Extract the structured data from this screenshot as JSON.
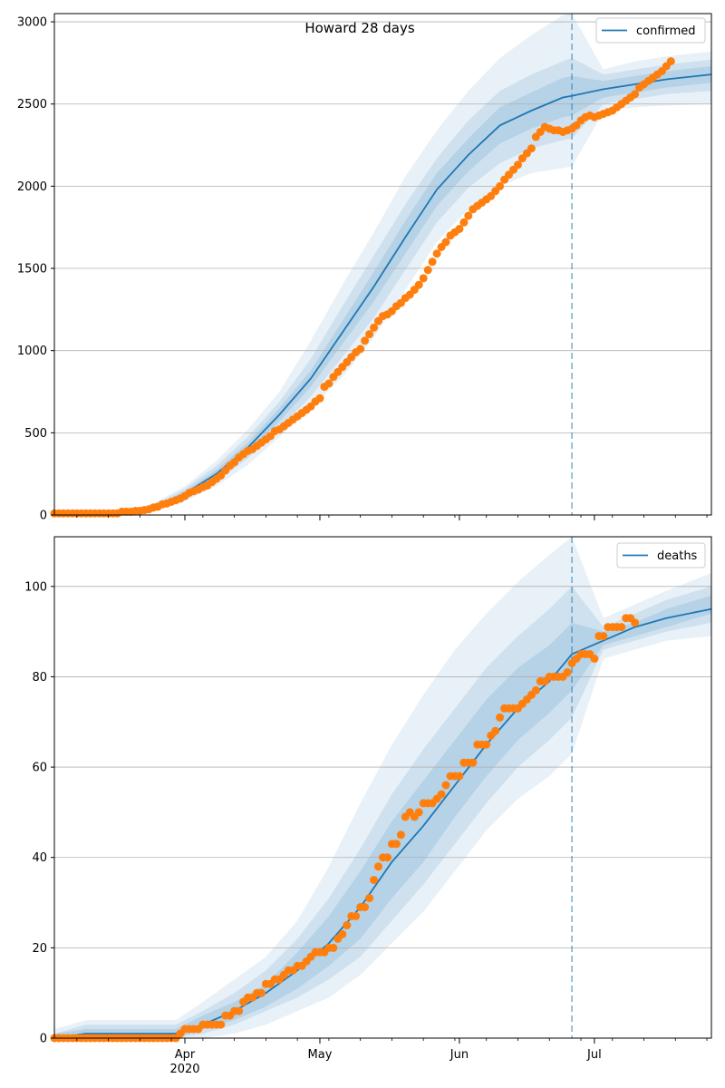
{
  "figure": {
    "title": "Howard 28 days"
  },
  "chart_data": [
    {
      "type": "line",
      "legend": "confirmed",
      "legend_placement": "top-right",
      "grid": "y",
      "xlim": [
        "2020-03-03",
        "2020-07-27"
      ],
      "ylim": [
        0,
        3050
      ],
      "yticks": [
        0,
        500,
        1000,
        1500,
        2000,
        2500,
        3000
      ],
      "vline_date": "2020-06-26",
      "colors": {
        "model": "#1f77b4",
        "observed": "#ff7f0e",
        "band": "#1f77b4"
      },
      "model": {
        "x": [
          "2020-03-03",
          "2020-03-18",
          "2020-03-25",
          "2020-04-01",
          "2020-04-08",
          "2020-04-15",
          "2020-04-22",
          "2020-04-29",
          "2020-05-06",
          "2020-05-13",
          "2020-05-20",
          "2020-05-27",
          "2020-06-03",
          "2020-06-10",
          "2020-06-17",
          "2020-06-24",
          "2020-06-26",
          "2020-07-03",
          "2020-07-10",
          "2020-07-17",
          "2020-07-27"
        ],
        "y": [
          0,
          10,
          45,
          130,
          250,
          410,
          610,
          830,
          1110,
          1390,
          1690,
          1980,
          2190,
          2370,
          2460,
          2540,
          2550,
          2590,
          2620,
          2650,
          2680
        ]
      },
      "bands": [
        {
          "level": "outer",
          "lower": [
            0,
            0,
            20,
            85,
            175,
            305,
            475,
            650,
            840,
            1080,
            1370,
            1660,
            1860,
            2000,
            2080,
            2110,
            2120,
            2450,
            2480,
            2490,
            2500
          ],
          "upper": [
            0,
            20,
            70,
            175,
            330,
            520,
            750,
            1060,
            1400,
            1720,
            2060,
            2340,
            2580,
            2780,
            2920,
            3040,
            3050,
            2710,
            2760,
            2790,
            2820
          ]
        },
        {
          "level": "middle",
          "lower": [
            0,
            3,
            30,
            100,
            200,
            345,
            530,
            720,
            960,
            1200,
            1490,
            1780,
            1990,
            2140,
            2230,
            2280,
            2290,
            2500,
            2530,
            2560,
            2580
          ],
          "upper": [
            0,
            16,
            60,
            160,
            300,
            475,
            690,
            950,
            1270,
            1580,
            1890,
            2170,
            2400,
            2580,
            2680,
            2760,
            2780,
            2680,
            2710,
            2740,
            2770
          ]
        },
        {
          "level": "inner",
          "lower": [
            0,
            6,
            38,
            115,
            225,
            380,
            570,
            780,
            1040,
            1300,
            1590,
            1880,
            2090,
            2260,
            2350,
            2420,
            2430,
            2540,
            2570,
            2600,
            2630
          ],
          "upper": [
            0,
            13,
            52,
            145,
            275,
            440,
            650,
            880,
            1180,
            1480,
            1790,
            2080,
            2290,
            2480,
            2570,
            2660,
            2670,
            2640,
            2670,
            2700,
            2730
          ]
        }
      ],
      "observed": {
        "start": "2020-03-03",
        "y": [
          10,
          10,
          10,
          10,
          10,
          10,
          10,
          10,
          10,
          10,
          10,
          10,
          10,
          10,
          10,
          20,
          20,
          20,
          25,
          25,
          30,
          35,
          45,
          50,
          65,
          70,
          80,
          90,
          100,
          115,
          135,
          145,
          155,
          170,
          180,
          200,
          220,
          240,
          270,
          300,
          320,
          350,
          370,
          390,
          400,
          420,
          440,
          460,
          480,
          510,
          520,
          540,
          560,
          580,
          600,
          620,
          640,
          660,
          690,
          710,
          780,
          800,
          840,
          870,
          900,
          930,
          960,
          990,
          1010,
          1060,
          1100,
          1140,
          1180,
          1210,
          1220,
          1240,
          1270,
          1290,
          1320,
          1340,
          1370,
          1400,
          1440,
          1490,
          1540,
          1590,
          1630,
          1660,
          1700,
          1720,
          1740,
          1780,
          1820,
          1860,
          1880,
          1900,
          1920,
          1940,
          1970,
          2000,
          2040,
          2070,
          2100,
          2130,
          2170,
          2200,
          2230,
          2300,
          2330,
          2360,
          2350,
          2340,
          2340,
          2330,
          2340,
          2350,
          2370,
          2400,
          2420,
          2430,
          2420,
          2430,
          2440,
          2450,
          2460,
          2480,
          2500,
          2520,
          2540,
          2560,
          2600,
          2620,
          2640,
          2660,
          2680,
          2700,
          2730,
          2760
        ]
      }
    },
    {
      "type": "line",
      "legend": "deaths",
      "legend_placement": "top-right",
      "grid": "y",
      "xlim": [
        "2020-03-03",
        "2020-07-27"
      ],
      "ylim": [
        0,
        111
      ],
      "yticks": [
        0,
        20,
        40,
        60,
        80,
        100
      ],
      "vline_date": "2020-06-26",
      "x_tick_labels": [
        {
          "date": "2020-04-01",
          "label": "Apr",
          "year": "2020"
        },
        {
          "date": "2020-05-01",
          "label": "May"
        },
        {
          "date": "2020-06-01",
          "label": "Jun"
        },
        {
          "date": "2020-07-01",
          "label": "Jul"
        }
      ],
      "colors": {
        "model": "#1f77b4",
        "observed": "#ff7f0e",
        "band": "#1f77b4"
      },
      "model": {
        "x": [
          "2020-03-03",
          "2020-03-10",
          "2020-03-20",
          "2020-03-30",
          "2020-04-05",
          "2020-04-12",
          "2020-04-19",
          "2020-04-26",
          "2020-05-03",
          "2020-05-10",
          "2020-05-17",
          "2020-05-24",
          "2020-05-31",
          "2020-06-07",
          "2020-06-14",
          "2020-06-21",
          "2020-06-26",
          "2020-07-03",
          "2020-07-10",
          "2020-07-17",
          "2020-07-27"
        ],
        "y": [
          0,
          1,
          1,
          1,
          3,
          6,
          10,
          15,
          21,
          29,
          39,
          47,
          56,
          65,
          73,
          79,
          85,
          88,
          91,
          93,
          95
        ]
      },
      "bands": [
        {
          "level": "outer",
          "lower": [
            0,
            0,
            0,
            0,
            0,
            1,
            3,
            6,
            9,
            14,
            21,
            28,
            37,
            46,
            53,
            58,
            63,
            84,
            86,
            88,
            89
          ],
          "upper": [
            2,
            4,
            4,
            4,
            8,
            13,
            18,
            26,
            38,
            52,
            65,
            76,
            86,
            94,
            101,
            107,
            111,
            93,
            96,
            99,
            103
          ]
        },
        {
          "level": "middle",
          "lower": [
            0,
            0,
            0,
            0,
            1,
            3,
            6,
            9,
            13,
            18,
            26,
            34,
            43,
            52,
            60,
            66,
            71,
            86,
            88,
            90,
            92
          ],
          "upper": [
            1,
            3,
            3,
            3,
            6,
            10,
            15,
            22,
            31,
            42,
            54,
            64,
            73,
            82,
            89,
            95,
            100,
            91,
            94,
            97,
            100
          ]
        },
        {
          "level": "inner",
          "lower": [
            0,
            0,
            0,
            0,
            2,
            4,
            7,
            11,
            16,
            22,
            31,
            39,
            49,
            58,
            66,
            72,
            77,
            87,
            89,
            91,
            94
          ],
          "upper": [
            1,
            2,
            2,
            2,
            5,
            8,
            12,
            19,
            27,
            37,
            48,
            57,
            66,
            75,
            82,
            87,
            92,
            90,
            92,
            95,
            98
          ]
        }
      ],
      "observed": {
        "start": "2020-03-03",
        "y": [
          0,
          0,
          0,
          0,
          0,
          0,
          0,
          0,
          0,
          0,
          0,
          0,
          0,
          0,
          0,
          0,
          0,
          0,
          0,
          0,
          0,
          0,
          0,
          0,
          0,
          0,
          0,
          0,
          1,
          2,
          2,
          2,
          2,
          3,
          3,
          3,
          3,
          3,
          5,
          5,
          6,
          6,
          8,
          9,
          9,
          10,
          10,
          12,
          12,
          13,
          13,
          14,
          15,
          15,
          16,
          16,
          17,
          18,
          19,
          19,
          19,
          20,
          20,
          22,
          23,
          25,
          27,
          27,
          29,
          29,
          31,
          35,
          38,
          40,
          40,
          43,
          43,
          45,
          49,
          50,
          49,
          50,
          52,
          52,
          52,
          53,
          54,
          56,
          58,
          58,
          58,
          61,
          61,
          61,
          65,
          65,
          65,
          67,
          68,
          71,
          73,
          73,
          73,
          73,
          74,
          75,
          76,
          77,
          79,
          79,
          80,
          80,
          80,
          80,
          81,
          83,
          84,
          85,
          85,
          85,
          84,
          89,
          89,
          91,
          91,
          91,
          91,
          93,
          93,
          92
        ]
      }
    }
  ]
}
